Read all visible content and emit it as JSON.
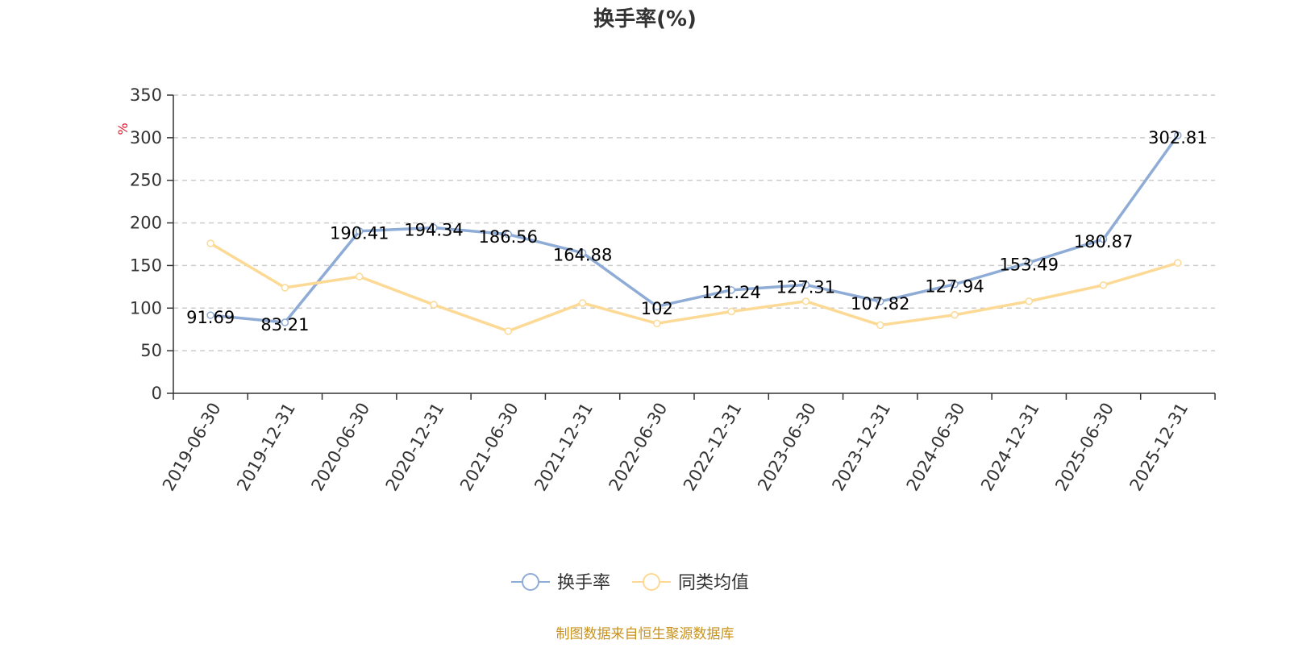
{
  "chart_data": {
    "type": "line",
    "title": "换手率(%)",
    "ylabel": "%",
    "xlabel": "",
    "ylim": [
      0,
      350
    ],
    "y_ticks": [
      0,
      50,
      100,
      150,
      200,
      250,
      300,
      350
    ],
    "categories": [
      "2019-06-30",
      "2019-12-31",
      "2020-06-30",
      "2020-12-31",
      "2021-06-30",
      "2021-12-31",
      "2022-06-30",
      "2022-12-31",
      "2023-06-30",
      "2023-12-31",
      "2024-06-30",
      "2024-12-31",
      "2025-06-30",
      "2025-12-31"
    ],
    "grid": "horizontal-dashed",
    "legend_position": "bottom-center",
    "series": [
      {
        "name": "换手率",
        "color": "#8eacd6",
        "show_labels": true,
        "values": [
          91.69,
          83.21,
          190.41,
          194.34,
          186.56,
          164.88,
          102,
          121.24,
          127.31,
          107.82,
          127.94,
          153.49,
          180.87,
          302.81
        ],
        "labels": [
          "91.69",
          "83.21",
          "190.41",
          "194.34",
          "186.56",
          "164.88",
          "102",
          "121.24",
          "127.31",
          "107.82",
          "127.94",
          "153.49",
          "180.87",
          "302.81"
        ]
      },
      {
        "name": "同类均值",
        "color": "#fcd994",
        "show_labels": false,
        "values": [
          176,
          124,
          137,
          104,
          73,
          106,
          82,
          96,
          108,
          80,
          92,
          108,
          127,
          153
        ]
      }
    ]
  },
  "source": "制图数据来自恒生聚源数据库"
}
